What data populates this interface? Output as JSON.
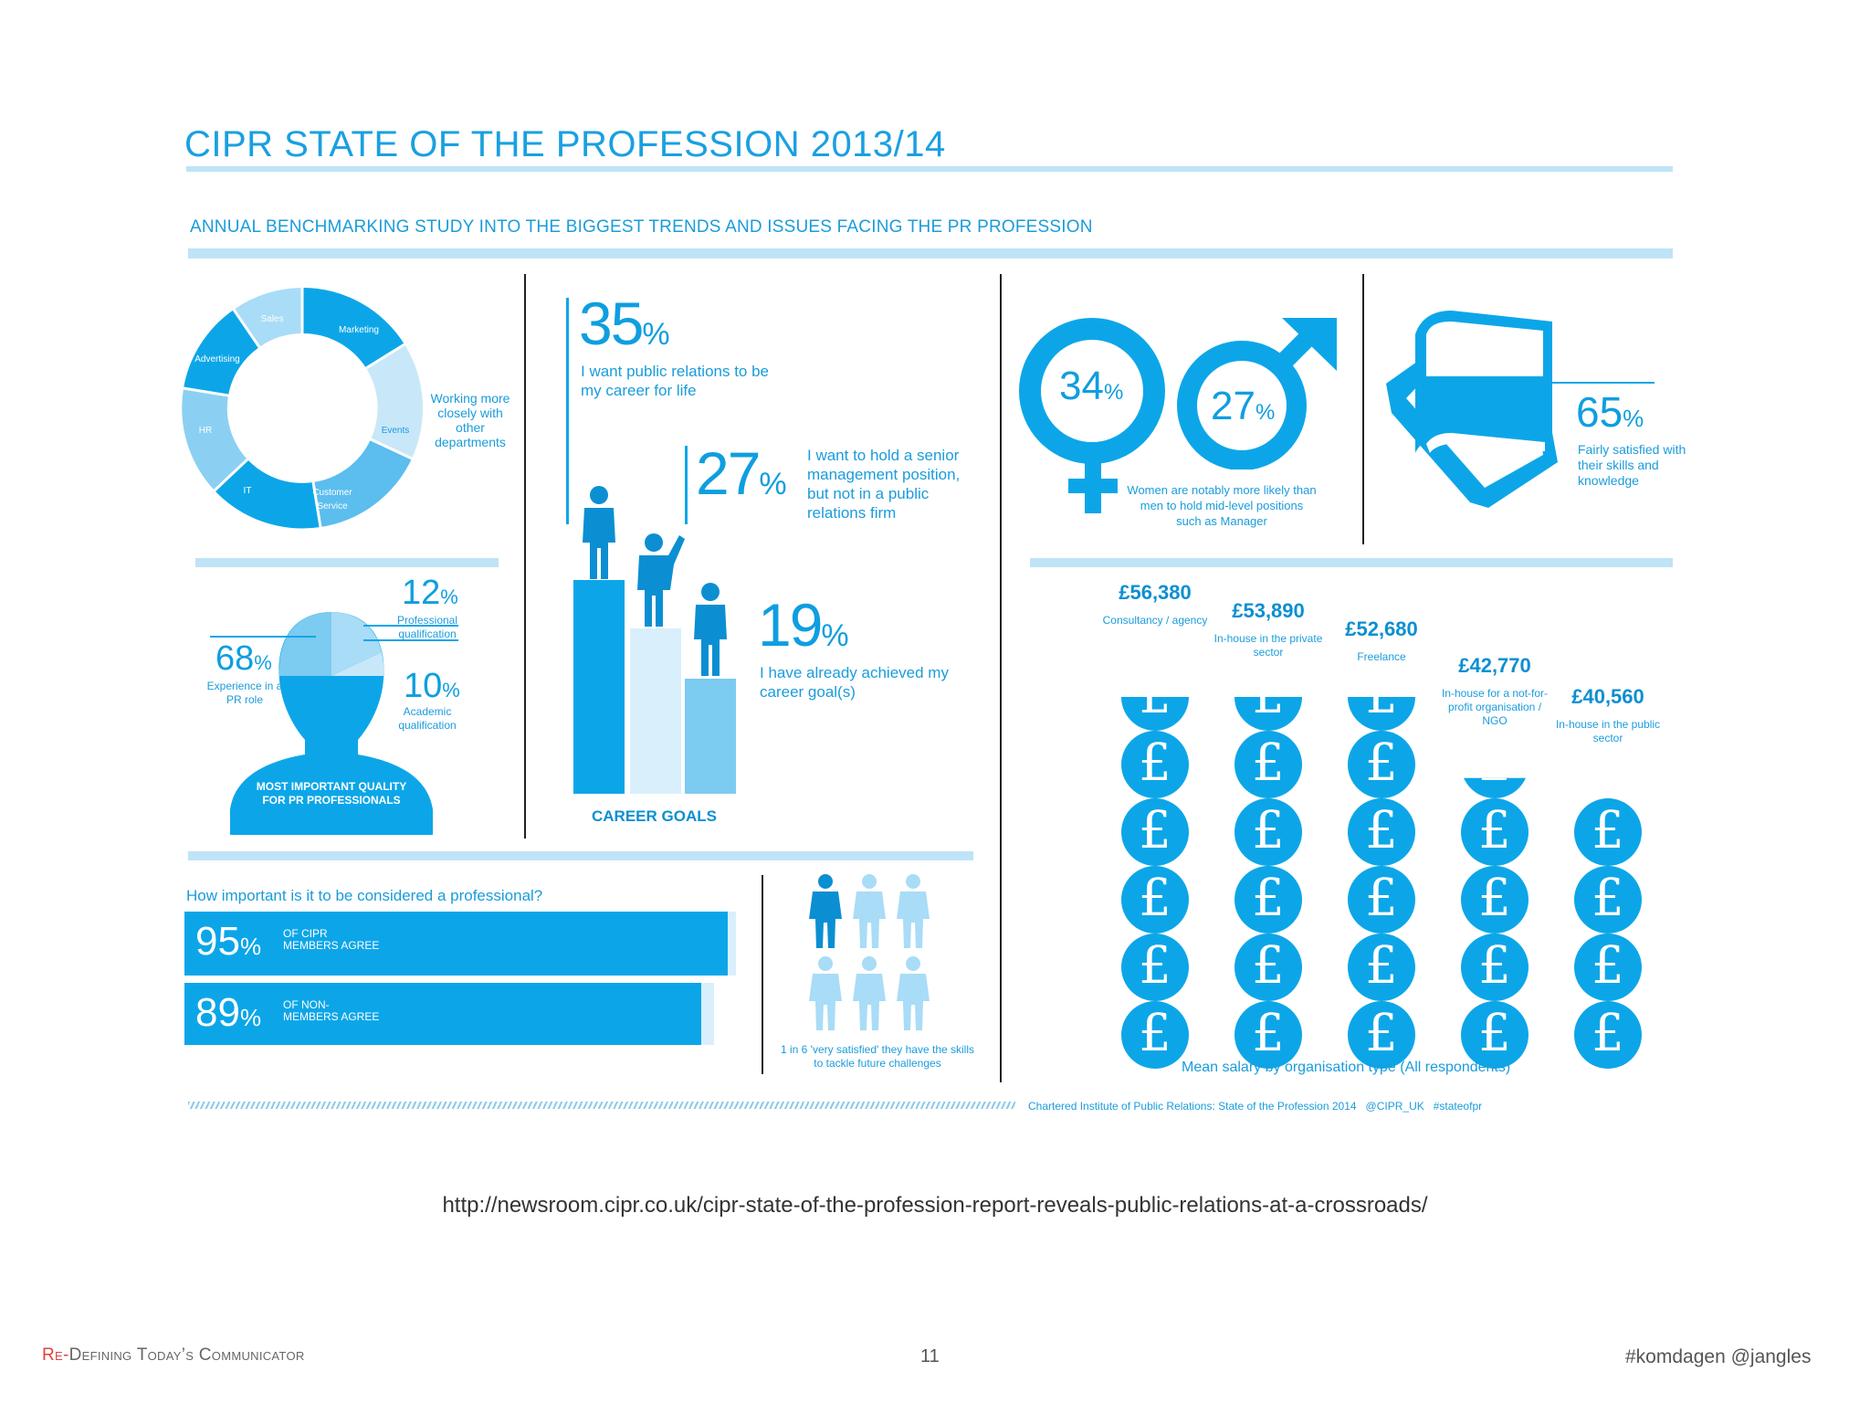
{
  "title": "CIPR STATE OF THE PROFESSION 2013/14",
  "subtitle": "ANNUAL BENCHMARKING STUDY INTO THE BIGGEST TRENDS AND ISSUES FACING THE PR PROFESSION",
  "donut": {
    "segments": [
      "Marketing",
      "Events",
      "Customer Service",
      "IT",
      "HR",
      "Advertising",
      "Sales"
    ],
    "label": "Working more closely with other departments"
  },
  "quality": {
    "p68": "68",
    "p68_label": "Experience in a PR role",
    "p12": "12",
    "p12_label": "Professional qualification",
    "p10": "10",
    "p10_label": "Academic qualification",
    "pct": "%",
    "caption": "MOST IMPORTANT QUALITY FOR PR PROFESSIONALS"
  },
  "career": {
    "stat1": "35",
    "stat1_label": "I want public relations to be my career for life",
    "stat2": "27",
    "stat2_label": "I want to hold a senior management position, but not in a public relations firm",
    "stat3": "19",
    "stat3_label": "I have already achieved my career goal(s)",
    "pct": "%",
    "caption": "CAREER GOALS"
  },
  "gender": {
    "women": "34",
    "men": "27",
    "pct": "%",
    "label": "Women are notably more likely than men to hold mid-level positions such as Manager"
  },
  "skills": {
    "stat": "65",
    "pct": "%",
    "label": "Fairly satisfied with their skills and knowledge"
  },
  "professional": {
    "question": "How important is it to be considered a professional?",
    "bars": [
      {
        "value": "95",
        "label1": "OF CIPR",
        "label2": "MEMBERS AGREE",
        "fraction": 0.95
      },
      {
        "value": "89",
        "label1": "OF NON-",
        "label2": "MEMBERS AGREE",
        "fraction": 0.89
      }
    ],
    "pct": "%"
  },
  "satisfied": {
    "label": "1 in 6 'very satisfied' they have the skills to tackle future challenges"
  },
  "salaries": {
    "items": [
      {
        "amount": "£56,380",
        "label": "Consultancy / agency"
      },
      {
        "amount": "£53,890",
        "label": "In-house in the private sector"
      },
      {
        "amount": "£52,680",
        "label": "Freelance"
      },
      {
        "amount": "£42,770",
        "label": "In-house for a not-for-profit organisation / NGO"
      },
      {
        "amount": "£40,560",
        "label": "In-house in the public sector"
      }
    ],
    "caption": "Mean salary by organisation type (All respondents)",
    "coin_symbol": "£"
  },
  "credit": "Chartered Institute of Public Relations: State of the Profession 2014   @CIPR_UK   #stateofpr",
  "url": "http://newsroom.cipr.co.uk/cipr-state-of-the-profession-report-reveals-public-relations-at-a-crossroads/",
  "footer": {
    "left_re": "Re-",
    "left_rest": "Defining Today’s Communicator",
    "page": "11",
    "right": "#komdagen @jangles"
  }
}
